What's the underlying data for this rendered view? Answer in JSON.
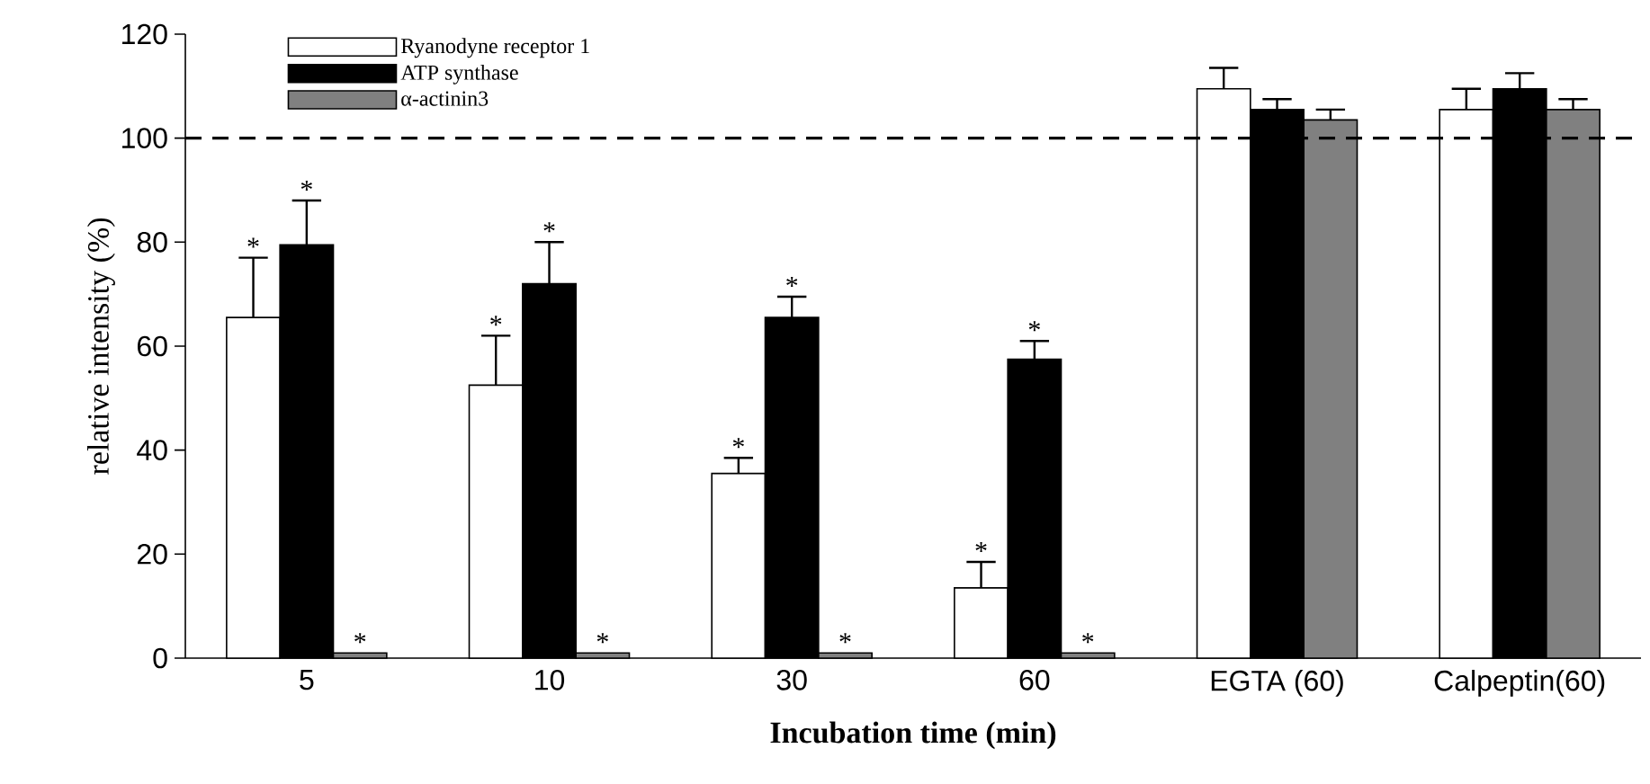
{
  "chart_data": {
    "type": "bar",
    "xlabel": "Incubation time (min)",
    "ylabel": "relative intensity  (%)",
    "categories": [
      "5",
      "10",
      "30",
      "60",
      "EGTA (60)",
      "Calpeptin(60)"
    ],
    "series": [
      {
        "name": "Ryanodyne receptor 1",
        "color": "#ffffff",
        "values": [
          65.5,
          52.5,
          35.5,
          13.5,
          109.5,
          105.5
        ],
        "errors": [
          [
            65.5,
            77
          ],
          [
            52.5,
            62
          ],
          [
            35.5,
            38.5
          ],
          [
            13.5,
            18.5
          ],
          [
            109.5,
            113.5
          ],
          [
            105.5,
            109.5
          ]
        ],
        "value_labels": [
          "*",
          "*",
          "*",
          "*",
          null,
          null
        ]
      },
      {
        "name": "ATP synthase",
        "color": "#000000",
        "values": [
          79.5,
          72,
          65.5,
          57.5,
          105.5,
          109.5
        ],
        "errors": [
          [
            79.5,
            88
          ],
          [
            72,
            80
          ],
          [
            65.5,
            69.5
          ],
          [
            57.5,
            61
          ],
          [
            105.5,
            107.5
          ],
          [
            109.5,
            112.5
          ]
        ],
        "value_labels": [
          "*",
          "*",
          "*",
          "*",
          null,
          null
        ]
      },
      {
        "name": "α-actinin3",
        "color": "#808080",
        "values": [
          1,
          1,
          1,
          1,
          103.5,
          105.5
        ],
        "errors": [
          null,
          null,
          null,
          null,
          [
            103.5,
            105.5
          ],
          [
            105.5,
            107.5
          ]
        ],
        "value_labels": [
          "*",
          "*",
          "*",
          "*",
          null,
          null
        ]
      }
    ],
    "ref_lines": [
      {
        "axis": "y",
        "value": 100,
        "color": "#000000",
        "line_style": "dashed"
      }
    ],
    "ylim": [
      0,
      120
    ],
    "yticks": [
      0,
      20,
      40,
      60,
      80,
      100,
      120
    ],
    "legend": "top left"
  }
}
